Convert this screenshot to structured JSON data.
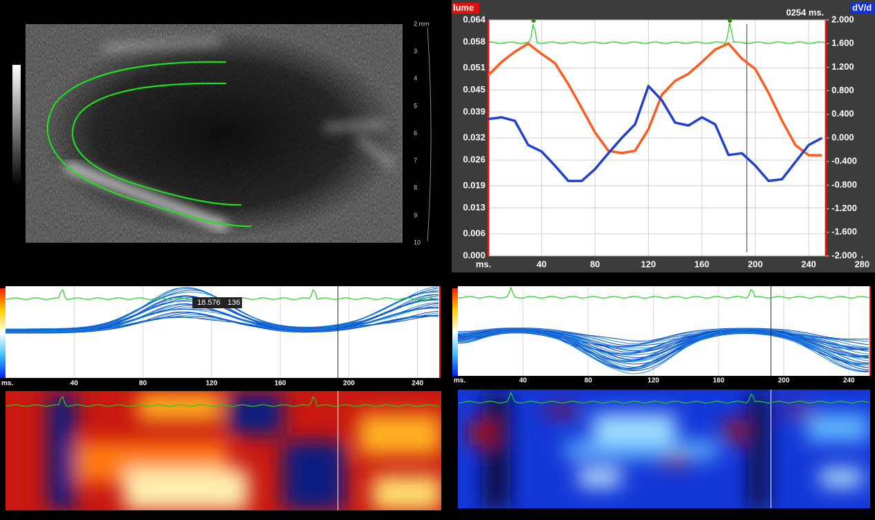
{
  "ultrasound": {
    "depth_labels": [
      "2 mm",
      "3",
      "4",
      "5",
      "6",
      "7",
      "8",
      "9",
      "10"
    ]
  },
  "volume_chart": {
    "left_badge": "lume",
    "right_badge": "dV/d",
    "cursor_time": "0254 ms.",
    "x_unit": "ms.",
    "xlim": [
      0,
      253
    ],
    "xticks": [
      40,
      80,
      120,
      160,
      200,
      240,
      280
    ],
    "ylim": [
      0,
      0.064
    ],
    "yticks": [
      {
        "value": 0,
        "label": "0.000"
      },
      {
        "value": 0.006,
        "label": "0.006"
      },
      {
        "value": 0.013,
        "label": "0.013"
      },
      {
        "value": 0.019,
        "label": "0.019"
      },
      {
        "value": 0.026,
        "label": "0.026"
      },
      {
        "value": 0.032,
        "label": "0.032"
      },
      {
        "value": 0.039,
        "label": "0.039"
      },
      {
        "value": 0.045,
        "label": "0.045"
      },
      {
        "value": 0.051,
        "label": "0.051"
      },
      {
        "value": 0.058,
        "label": "0.058"
      },
      {
        "value": 0.064,
        "label": "0.064"
      }
    ],
    "y2lim": [
      -2,
      2
    ],
    "y2ticks": [
      {
        "value": 2,
        "label": "2.000"
      },
      {
        "value": 1.6,
        "label": "1.600"
      },
      {
        "value": 1.2,
        "label": "1.200"
      },
      {
        "value": 0.8,
        "label": "0.800"
      },
      {
        "value": 0.4,
        "label": "0.400"
      },
      {
        "value": 0,
        "label": "0.000"
      },
      {
        "value": -0.4,
        "label": "-0.400"
      },
      {
        "value": -0.8,
        "label": "-0.800"
      },
      {
        "value": -1.2,
        "label": "-1.200"
      },
      {
        "value": -1.6,
        "label": "-1.600"
      },
      {
        "value": -2,
        "label": "-2.000"
      }
    ],
    "x": [
      0,
      10,
      20,
      30,
      40,
      50,
      60,
      70,
      80,
      90,
      100,
      110,
      120,
      130,
      140,
      150,
      160,
      170,
      180,
      190,
      200,
      210,
      220,
      230,
      240,
      250
    ],
    "series": [
      {
        "color": "#ff5a1f",
        "values": [
          0.049,
          0.0526,
          0.0554,
          0.0576,
          0.0548,
          0.0523,
          0.0466,
          0.0401,
          0.0335,
          0.0285,
          0.0279,
          0.0285,
          0.0344,
          0.0437,
          0.0475,
          0.0494,
          0.0526,
          0.056,
          0.0576,
          0.0535,
          0.0507,
          0.0442,
          0.0367,
          0.0301,
          0.0273,
          0.0273
        ]
      },
      {
        "color": "#1f3fd0",
        "axis": "y2",
        "values": [
          0.32,
          0.35,
          0.29,
          -0.12,
          -0.23,
          -0.47,
          -0.73,
          -0.73,
          -0.53,
          -0.26,
          0,
          0.23,
          0.88,
          0.64,
          0.26,
          0.21,
          0.35,
          0.23,
          -0.29,
          -0.26,
          -0.47,
          -0.73,
          -0.7,
          -0.41,
          -0.12,
          0
        ]
      }
    ]
  },
  "strain_left": {
    "x_unit": "ms.",
    "xlim": [
      0,
      253
    ],
    "xticks": [
      40,
      80,
      120,
      160,
      200,
      240
    ],
    "tooltip": [
      "18.576",
      "136"
    ]
  },
  "strain_right": {
    "x_unit": "ms.",
    "xlim": [
      0,
      253
    ],
    "xticks": [
      40,
      80,
      120,
      160,
      200,
      240
    ]
  }
}
